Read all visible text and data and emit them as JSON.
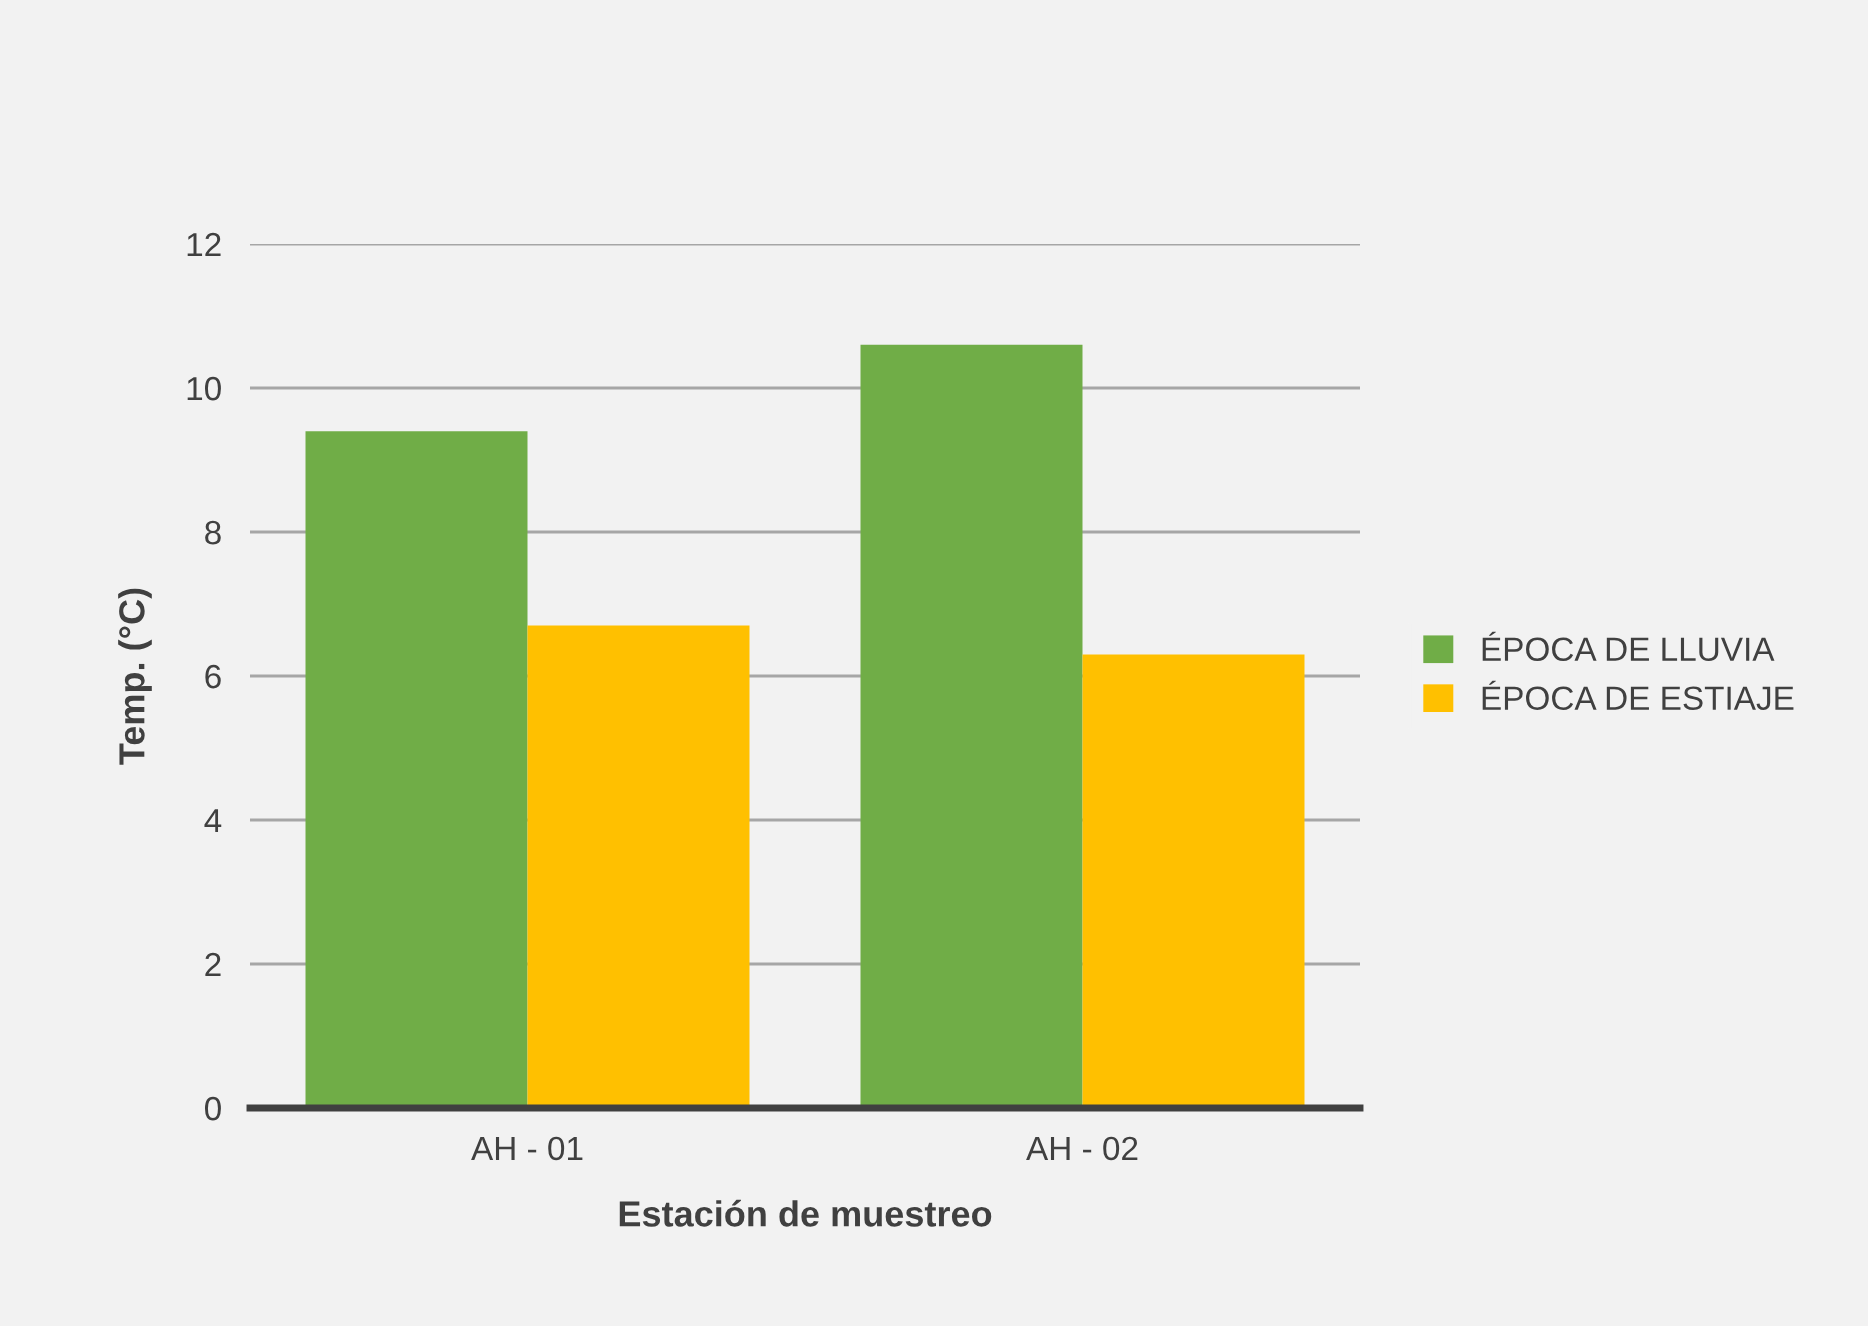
{
  "chart_data": {
    "type": "bar",
    "xlabel": "Estación de muestreo",
    "ylabel": "Temp. (°C)",
    "categories": [
      "AH - 01",
      "AH - 02"
    ],
    "series": [
      {
        "name": "ÉPOCA DE LLUVIA",
        "color": "#70ad47",
        "values": [
          9.4,
          10.6
        ]
      },
      {
        "name": "ÉPOCA DE ESTIAJE",
        "color": "#ffc000",
        "values": [
          6.7,
          6.3
        ]
      }
    ],
    "ylim": [
      0,
      12
    ],
    "yticks": [
      0,
      2,
      4,
      6,
      8,
      10,
      12
    ],
    "grid": "y",
    "legend": "right"
  }
}
